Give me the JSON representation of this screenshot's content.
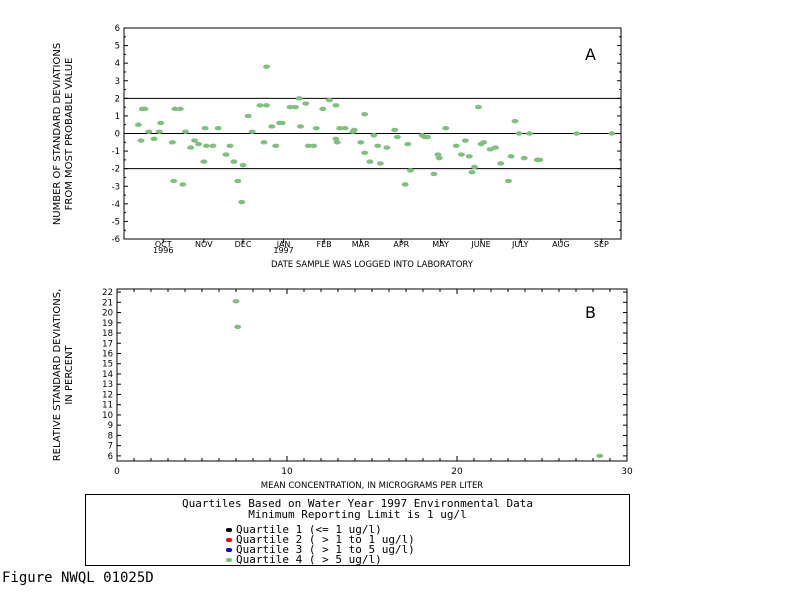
{
  "chart_data": [
    {
      "type": "scatter",
      "panel_label": "A",
      "xlabel": "DATE SAMPLE WAS LOGGED INTO LABORATORY",
      "ylabel": [
        "NUMBER OF STANDARD DEVIATIONS",
        "FROM MOST PROBABLE VALUE"
      ],
      "ylim": [
        -6,
        6
      ],
      "xlim": [
        "1996-09-15",
        "1997-09-30"
      ],
      "yticks": [
        6,
        5,
        4,
        3,
        2,
        1,
        0,
        -1,
        -2,
        -3,
        -4,
        -5,
        -6
      ],
      "month_labels": [
        {
          "label": "OCT",
          "year": "1996",
          "date": "1996-10-15"
        },
        {
          "label": "NOV",
          "year": "",
          "date": "1996-11-15"
        },
        {
          "label": "DEC",
          "year": "",
          "date": "1996-12-15"
        },
        {
          "label": "JAN",
          "year": "1997",
          "date": "1997-01-15"
        },
        {
          "label": "FEB",
          "year": "",
          "date": "1997-02-15"
        },
        {
          "label": "MAR",
          "year": "",
          "date": "1997-03-15"
        },
        {
          "label": "APR",
          "year": "",
          "date": "1997-04-15"
        },
        {
          "label": "MAY",
          "year": "",
          "date": "1997-05-15"
        },
        {
          "label": "JUNE",
          "year": "",
          "date": "1997-06-15"
        },
        {
          "label": "JULY",
          "year": "",
          "date": "1997-07-15"
        },
        {
          "label": "AUG",
          "year": "",
          "date": "1997-08-15"
        },
        {
          "label": "SEP",
          "year": "",
          "date": "1997-09-15"
        }
      ],
      "reference_lines": [
        2,
        0,
        -2
      ],
      "series": [
        {
          "quartile": 4,
          "points": [
            {
              "x": "1996-09-26",
              "y": 0.5
            },
            {
              "x": "1996-09-28",
              "y": -0.4
            },
            {
              "x": "1996-09-29",
              "y": 1.4
            },
            {
              "x": "1996-10-01",
              "y": 1.4
            },
            {
              "x": "1996-10-04",
              "y": 0.1
            },
            {
              "x": "1996-10-08",
              "y": -0.3
            },
            {
              "x": "1996-10-12",
              "y": 0.1
            },
            {
              "x": "1996-10-13",
              "y": 0.6
            },
            {
              "x": "1996-10-22",
              "y": -0.5
            },
            {
              "x": "1996-10-23",
              "y": -2.7
            },
            {
              "x": "1996-10-24",
              "y": 1.4
            },
            {
              "x": "1996-10-28",
              "y": 1.4
            },
            {
              "x": "1996-10-30",
              "y": -2.9
            },
            {
              "x": "1996-11-01",
              "y": 0.1
            },
            {
              "x": "1996-11-05",
              "y": -0.8
            },
            {
              "x": "1996-11-08",
              "y": -0.4
            },
            {
              "x": "1996-11-11",
              "y": -0.6
            },
            {
              "x": "1996-11-15",
              "y": -1.6
            },
            {
              "x": "1996-11-16",
              "y": 0.3
            },
            {
              "x": "1996-11-17",
              "y": -0.7
            },
            {
              "x": "1996-11-22",
              "y": -0.7
            },
            {
              "x": "1996-11-26",
              "y": 0.3
            },
            {
              "x": "1996-12-02",
              "y": -1.2
            },
            {
              "x": "1996-12-05",
              "y": -0.7
            },
            {
              "x": "1996-12-08",
              "y": -1.6
            },
            {
              "x": "1996-12-11",
              "y": -2.7
            },
            {
              "x": "1996-12-14",
              "y": -3.9
            },
            {
              "x": "1996-12-15",
              "y": -1.8
            },
            {
              "x": "1996-12-19",
              "y": 1.0
            },
            {
              "x": "1996-12-22",
              "y": 0.1
            },
            {
              "x": "1996-12-28",
              "y": 1.6
            },
            {
              "x": "1996-12-31",
              "y": -0.5
            },
            {
              "x": "1997-01-02",
              "y": 1.6
            },
            {
              "x": "1997-01-02",
              "y": 3.8
            },
            {
              "x": "1997-01-06",
              "y": 0.4
            },
            {
              "x": "1997-01-09",
              "y": -0.7
            },
            {
              "x": "1997-01-12",
              "y": 0.6
            },
            {
              "x": "1997-01-14",
              "y": 0.6
            },
            {
              "x": "1997-01-20",
              "y": 1.5
            },
            {
              "x": "1997-01-24",
              "y": 1.5
            },
            {
              "x": "1997-01-27",
              "y": 2.0
            },
            {
              "x": "1997-01-28",
              "y": 0.4
            },
            {
              "x": "1997-02-01",
              "y": 1.7
            },
            {
              "x": "1997-02-03",
              "y": -0.7
            },
            {
              "x": "1997-02-07",
              "y": -0.7
            },
            {
              "x": "1997-02-09",
              "y": 0.3
            },
            {
              "x": "1997-02-14",
              "y": 1.4
            },
            {
              "x": "1997-02-19",
              "y": 1.9
            },
            {
              "x": "1997-02-24",
              "y": 1.6
            },
            {
              "x": "1997-02-24",
              "y": -0.3
            },
            {
              "x": "1997-02-25",
              "y": -0.5
            },
            {
              "x": "1997-02-27",
              "y": 0.3
            },
            {
              "x": "1997-03-03",
              "y": 0.3
            },
            {
              "x": "1997-03-09",
              "y": 0.1
            },
            {
              "x": "1997-03-10",
              "y": 0.2
            },
            {
              "x": "1997-03-15",
              "y": -0.5
            },
            {
              "x": "1997-03-18",
              "y": -1.1
            },
            {
              "x": "1997-03-18",
              "y": 1.1
            },
            {
              "x": "1997-03-22",
              "y": -1.6
            },
            {
              "x": "1997-03-25",
              "y": -0.1
            },
            {
              "x": "1997-03-28",
              "y": -0.7
            },
            {
              "x": "1997-03-30",
              "y": -1.7
            },
            {
              "x": "1997-04-04",
              "y": -0.8
            },
            {
              "x": "1997-04-10",
              "y": 0.2
            },
            {
              "x": "1997-04-12",
              "y": -0.2
            },
            {
              "x": "1997-04-18",
              "y": -2.9
            },
            {
              "x": "1997-04-20",
              "y": -0.6
            },
            {
              "x": "1997-04-22",
              "y": -2.1
            },
            {
              "x": "1997-05-01",
              "y": -0.1
            },
            {
              "x": "1997-05-03",
              "y": -0.2
            },
            {
              "x": "1997-05-05",
              "y": -0.2
            },
            {
              "x": "1997-05-10",
              "y": -2.3
            },
            {
              "x": "1997-05-13",
              "y": -1.2
            },
            {
              "x": "1997-05-14",
              "y": -1.4
            },
            {
              "x": "1997-05-19",
              "y": 0.3
            },
            {
              "x": "1997-05-27",
              "y": -0.7
            },
            {
              "x": "1997-05-31",
              "y": -1.2
            },
            {
              "x": "1997-06-03",
              "y": -0.4
            },
            {
              "x": "1997-06-06",
              "y": -1.3
            },
            {
              "x": "1997-06-08",
              "y": -2.2
            },
            {
              "x": "1997-06-10",
              "y": -1.9
            },
            {
              "x": "1997-06-13",
              "y": 1.5
            },
            {
              "x": "1997-06-15",
              "y": -0.6
            },
            {
              "x": "1997-06-17",
              "y": -0.5
            },
            {
              "x": "1997-06-22",
              "y": -0.9
            },
            {
              "x": "1997-06-26",
              "y": -0.8
            },
            {
              "x": "1997-06-30",
              "y": -1.7
            },
            {
              "x": "1997-07-06",
              "y": -2.7
            },
            {
              "x": "1997-07-08",
              "y": -1.3
            },
            {
              "x": "1997-07-11",
              "y": 0.7
            },
            {
              "x": "1997-07-14",
              "y": 0.0
            },
            {
              "x": "1997-07-18",
              "y": -1.4
            },
            {
              "x": "1997-07-22",
              "y": 0.0
            },
            {
              "x": "1997-07-28",
              "y": -1.5
            },
            {
              "x": "1997-07-30",
              "y": -1.5
            },
            {
              "x": "1997-08-27",
              "y": 0.0
            },
            {
              "x": "1997-09-23",
              "y": 0.0
            }
          ]
        }
      ]
    },
    {
      "type": "scatter",
      "panel_label": "B",
      "xlabel": "MEAN CONCENTRATION, IN MICROGRAMS PER LITER",
      "ylabel": [
        "RELATIVE STANDARD DEVIATIONS,",
        "IN PERCENT"
      ],
      "xlim": [
        0,
        30
      ],
      "ylim": [
        5.5,
        22.3
      ],
      "xticks": [
        0,
        10,
        20,
        30
      ],
      "yticks": [
        22,
        21,
        20,
        19,
        18,
        17,
        16,
        15,
        14,
        13,
        12,
        11,
        10,
        9,
        8,
        7,
        6
      ],
      "series": [
        {
          "quartile": 4,
          "points": [
            {
              "x": 7.0,
              "y": 21.1
            },
            {
              "x": 7.1,
              "y": 18.6
            },
            {
              "x": 28.4,
              "y": 6.0
            }
          ]
        }
      ]
    }
  ],
  "legend": {
    "title_line1": "Quartiles Based on Water Year 1997 Environmental Data",
    "title_line2": "Minimum Reporting Limit is 1 ug/l",
    "items": [
      {
        "label": "Quartile 1 (<= 1         ug/l)",
        "color": "#000000"
      },
      {
        "label": "Quartile 2 ( > 1 to 1   ug/l)",
        "color": "#ff0000"
      },
      {
        "label": "Quartile 3 ( > 1 to 5 ug/l)",
        "color": "#0000ff"
      },
      {
        "label": "Quartile 4 ( > 5          ug/l)",
        "color": "#7fbf7f"
      }
    ]
  },
  "figure_id": "Figure NWQL 01025D",
  "colors": {
    "point": "#7fbf7f",
    "axis": "#000000"
  }
}
